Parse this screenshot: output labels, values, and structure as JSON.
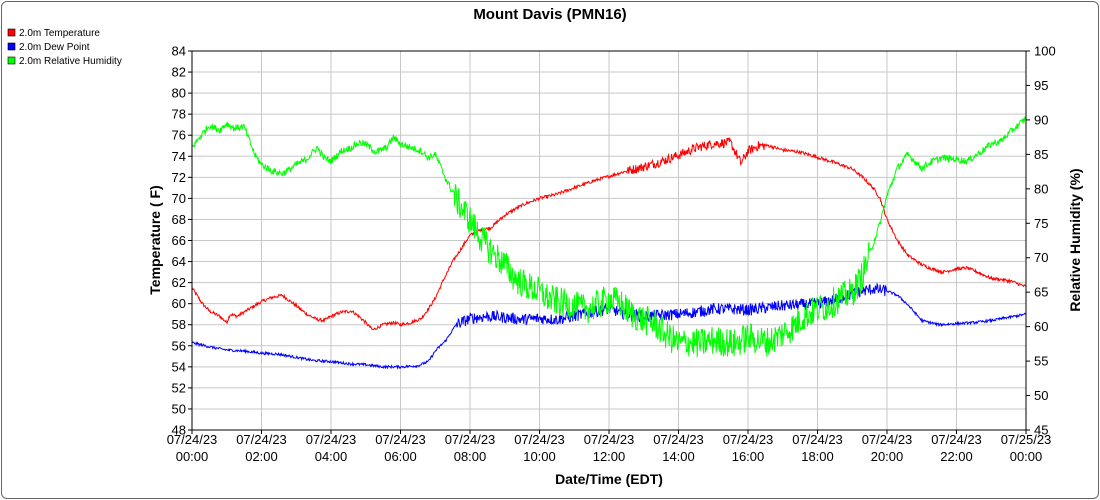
{
  "chart_data": {
    "type": "line",
    "title": "Mount Davis (PMN16)",
    "xlabel": "Date/Time (EDT)",
    "ylabel": "Temperature ( F)",
    "ylabel_right": "Relative Humidity (%)",
    "xlim_hours": [
      0,
      24
    ],
    "ylim": [
      48,
      84
    ],
    "ylim_right": [
      45,
      100
    ],
    "grid": true,
    "legend_placement": "top-left",
    "x_ticks": [
      {
        "date": "07/24/23",
        "time": "00:00"
      },
      {
        "date": "07/24/23",
        "time": "02:00"
      },
      {
        "date": "07/24/23",
        "time": "04:00"
      },
      {
        "date": "07/24/23",
        "time": "06:00"
      },
      {
        "date": "07/24/23",
        "time": "08:00"
      },
      {
        "date": "07/24/23",
        "time": "10:00"
      },
      {
        "date": "07/24/23",
        "time": "12:00"
      },
      {
        "date": "07/24/23",
        "time": "14:00"
      },
      {
        "date": "07/24/23",
        "time": "16:00"
      },
      {
        "date": "07/24/23",
        "time": "18:00"
      },
      {
        "date": "07/24/23",
        "time": "20:00"
      },
      {
        "date": "07/24/23",
        "time": "22:00"
      },
      {
        "date": "07/25/23",
        "time": "00:00"
      }
    ],
    "y_ticks": [
      "48",
      "50",
      "52",
      "54",
      "56",
      "58",
      "60",
      "62",
      "64",
      "66",
      "68",
      "70",
      "72",
      "74",
      "76",
      "78",
      "80",
      "82",
      "84"
    ],
    "y_ticks_right": [
      "45",
      "50",
      "55",
      "60",
      "65",
      "70",
      "75",
      "80",
      "85",
      "90",
      "95",
      "100"
    ],
    "series": [
      {
        "name": "2.0m Temperature",
        "color": "#ff0000",
        "axis": "left",
        "x": [
          0,
          0.3,
          0.5,
          0.8,
          1.0,
          1.1,
          1.3,
          1.5,
          1.8,
          2.0,
          2.3,
          2.6,
          2.8,
          3.0,
          3.3,
          3.6,
          3.8,
          4.0,
          4.3,
          4.6,
          4.8,
          5.0,
          5.2,
          5.5,
          5.8,
          6.0,
          6.3,
          6.6,
          6.8,
          7.0,
          7.2,
          7.5,
          7.8,
          8.0,
          8.3,
          8.6,
          8.8,
          9.0,
          9.3,
          9.6,
          10.0,
          10.5,
          11.0,
          11.5,
          12.0,
          12.5,
          13.0,
          13.5,
          14.0,
          14.5,
          15.0,
          15.5,
          15.8,
          16.0,
          16.3,
          16.6,
          17.0,
          17.5,
          18.0,
          18.5,
          19.0,
          19.3,
          19.6,
          19.8,
          20.0,
          20.3,
          20.6,
          21.0,
          21.3,
          21.6,
          22.0,
          22.3,
          22.6,
          23.0,
          23.3,
          23.6,
          24.0
        ],
        "y": [
          61.5,
          60.0,
          59.3,
          58.8,
          58.2,
          59.0,
          58.8,
          59.2,
          59.8,
          60.2,
          60.6,
          60.8,
          60.3,
          59.8,
          59.0,
          58.5,
          58.4,
          58.8,
          59.2,
          59.3,
          58.8,
          58.2,
          57.5,
          58.0,
          58.2,
          58.0,
          58.2,
          58.6,
          59.5,
          60.5,
          62.0,
          64.0,
          65.5,
          66.5,
          67.0,
          67.2,
          67.8,
          68.4,
          69.0,
          69.5,
          70.0,
          70.4,
          71.0,
          71.6,
          72.1,
          72.6,
          73.0,
          73.5,
          74.1,
          74.8,
          75.2,
          75.3,
          73.3,
          74.5,
          75.0,
          75.0,
          74.6,
          74.4,
          73.9,
          73.4,
          72.8,
          72.0,
          71.0,
          70.0,
          68.0,
          66.0,
          64.6,
          63.7,
          63.3,
          63.0,
          63.3,
          63.4,
          63.0,
          62.4,
          62.3,
          62.1,
          61.6
        ]
      },
      {
        "name": "2.0m Dew Point",
        "color": "#0000ff",
        "axis": "left",
        "x": [
          0,
          0.5,
          1.0,
          1.5,
          2.0,
          2.5,
          3.0,
          3.5,
          4.0,
          4.5,
          5.0,
          5.5,
          6.0,
          6.5,
          6.8,
          7.0,
          7.3,
          7.6,
          8.0,
          8.5,
          9.0,
          9.5,
          10.0,
          10.5,
          11.0,
          11.5,
          12.0,
          12.5,
          13.0,
          13.5,
          14.0,
          14.5,
          15.0,
          15.5,
          16.0,
          16.5,
          17.0,
          17.5,
          18.0,
          18.5,
          19.0,
          19.3,
          19.6,
          20.0,
          20.3,
          20.6,
          21.0,
          21.5,
          22.0,
          22.5,
          23.0,
          23.5,
          24.0
        ],
        "y": [
          56.3,
          55.9,
          55.6,
          55.5,
          55.3,
          55.2,
          54.9,
          54.6,
          54.5,
          54.3,
          54.2,
          54.0,
          54.0,
          54.1,
          54.5,
          55.5,
          56.5,
          58.0,
          58.6,
          58.8,
          58.7,
          58.5,
          58.6,
          58.5,
          58.8,
          59.2,
          59.5,
          59.0,
          58.8,
          58.9,
          59.0,
          59.2,
          59.5,
          59.5,
          59.4,
          59.6,
          59.8,
          59.9,
          60.0,
          60.4,
          60.9,
          61.2,
          61.4,
          61.2,
          60.8,
          59.9,
          58.4,
          58.0,
          58.1,
          58.2,
          58.4,
          58.7,
          59.0
        ]
      },
      {
        "name": "2.0m Relative Humidity",
        "color": "#00ff00",
        "axis": "right",
        "x": [
          0,
          0.3,
          0.5,
          0.8,
          1.0,
          1.2,
          1.5,
          1.8,
          2.0,
          2.3,
          2.6,
          2.8,
          3.0,
          3.3,
          3.6,
          3.8,
          4.0,
          4.3,
          4.6,
          4.8,
          5.0,
          5.3,
          5.6,
          5.8,
          6.0,
          6.3,
          6.6,
          6.8,
          7.0,
          7.3,
          7.6,
          8.0,
          8.3,
          8.6,
          9.0,
          9.3,
          9.6,
          10.0,
          10.3,
          10.6,
          11.0,
          11.3,
          11.6,
          12.0,
          12.3,
          12.6,
          13.0,
          13.3,
          13.6,
          14.0,
          14.3,
          14.6,
          15.0,
          15.3,
          15.6,
          16.0,
          16.3,
          16.6,
          17.0,
          17.3,
          17.6,
          18.0,
          18.3,
          18.6,
          19.0,
          19.2,
          19.4,
          19.6,
          19.8,
          20.0,
          20.3,
          20.6,
          21.0,
          21.3,
          21.6,
          22.0,
          22.3,
          22.6,
          23.0,
          23.3,
          23.6,
          24.0
        ],
        "y": [
          86.0,
          88.0,
          89.2,
          88.5,
          89.5,
          88.8,
          89.0,
          85.0,
          83.5,
          82.6,
          82.2,
          82.8,
          83.5,
          84.3,
          86.0,
          84.5,
          84.0,
          85.5,
          86.0,
          86.7,
          86.5,
          85.3,
          86.0,
          87.5,
          86.5,
          86.0,
          85.5,
          84.5,
          85.0,
          81.5,
          78.5,
          75.5,
          73.0,
          71.0,
          69.0,
          67.0,
          66.0,
          65.0,
          64.0,
          63.5,
          63.0,
          62.5,
          63.0,
          64.0,
          63.5,
          62.0,
          61.0,
          60.5,
          59.0,
          57.5,
          57.8,
          57.5,
          58.0,
          57.8,
          57.5,
          58.5,
          58.0,
          57.8,
          59.0,
          60.0,
          61.5,
          62.5,
          63.0,
          64.0,
          65.0,
          66.5,
          69.0,
          72.0,
          75.0,
          79.0,
          83.0,
          85.0,
          83.0,
          84.0,
          84.5,
          84.3,
          84.0,
          85.0,
          86.5,
          87.0,
          88.5,
          90.2
        ]
      }
    ]
  }
}
